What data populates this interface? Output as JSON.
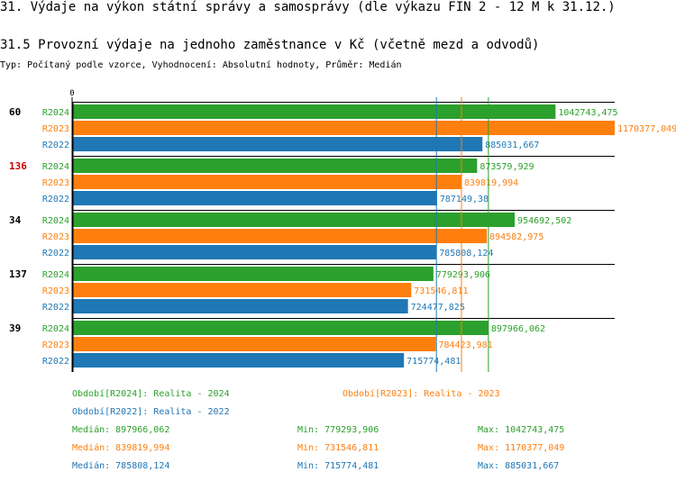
{
  "title": "31. Výdaje na výkon státní správy a samosprávy (dle výkazu FIN 2 - 12 M k 31.12.)",
  "subtitle": "31.5 Provozní výdaje na jednoho zaměstnance v Kč (včetně mezd a odvodů)",
  "type_line": "Typ: Počítaný podle vzorce, Vyhodnocení: Absolutní hodnoty, Průměr: Medián",
  "colors": {
    "R2024": "#2ca02c",
    "R2023": "#ff7f0e",
    "R2022": "#1f77b4",
    "highlight": "#cc0000"
  },
  "chart_data": {
    "type": "bar",
    "orientation": "horizontal",
    "axis_zero_label": "0",
    "xlim": [
      0,
      1170377.049
    ],
    "groups": [
      {
        "label": "60",
        "highlight": false,
        "bars": [
          {
            "series": "R2024",
            "value": 1042743.475,
            "label": "1042743,475"
          },
          {
            "series": "R2023",
            "value": 1170377.049,
            "label": "1170377,049"
          },
          {
            "series": "R2022",
            "value": 885031.667,
            "label": "885031,667"
          }
        ]
      },
      {
        "label": "136",
        "highlight": true,
        "bars": [
          {
            "series": "R2024",
            "value": 873579.929,
            "label": "873579,929"
          },
          {
            "series": "R2023",
            "value": 839819.994,
            "label": "839819,994"
          },
          {
            "series": "R2022",
            "value": 787149.38,
            "label": "787149,38"
          }
        ]
      },
      {
        "label": "34",
        "highlight": false,
        "bars": [
          {
            "series": "R2024",
            "value": 954692.502,
            "label": "954692,502"
          },
          {
            "series": "R2023",
            "value": 894582.975,
            "label": "894582,975"
          },
          {
            "series": "R2022",
            "value": 785808.124,
            "label": "785808,124"
          }
        ]
      },
      {
        "label": "137",
        "highlight": false,
        "bars": [
          {
            "series": "R2024",
            "value": 779293.906,
            "label": "779293,906"
          },
          {
            "series": "R2023",
            "value": 731546.811,
            "label": "731546,811"
          },
          {
            "series": "R2022",
            "value": 724477.825,
            "label": "724477,825"
          }
        ]
      },
      {
        "label": "39",
        "highlight": false,
        "bars": [
          {
            "series": "R2024",
            "value": 897966.062,
            "label": "897966,062"
          },
          {
            "series": "R2023",
            "value": 784423.981,
            "label": "784423,981"
          },
          {
            "series": "R2022",
            "value": 715774.481,
            "label": "715774,481"
          }
        ]
      }
    ],
    "medians": {
      "R2024": 897966.062,
      "R2023": 839819.994,
      "R2022": 785808.124
    },
    "legend": [
      {
        "series": "R2024",
        "text": "Období[R2024]: Realita - 2024"
      },
      {
        "series": "R2023",
        "text": "Období[R2023]: Realita - 2023"
      },
      {
        "series": "R2022",
        "text": "Období[R2022]: Realita - 2022"
      }
    ],
    "stats": [
      {
        "series": "R2024",
        "median": "Medián: 897966,062",
        "min": "Min: 779293,906",
        "max": "Max: 1042743,475"
      },
      {
        "series": "R2023",
        "median": "Medián: 839819,994",
        "min": "Min: 731546,811",
        "max": "Max: 1170377,049"
      },
      {
        "series": "R2022",
        "median": "Medián: 785808,124",
        "min": "Min: 715774,481",
        "max": "Max: 885031,667"
      }
    ]
  }
}
